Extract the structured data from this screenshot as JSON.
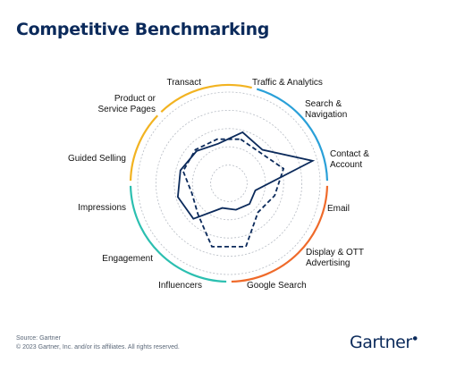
{
  "title": "Competitive Benchmarking",
  "footer": {
    "source": "Source: Gartner",
    "copyright": "© 2023 Gartner, Inc. and/or its affiliates. All rights reserved."
  },
  "logo_text": "Gartner",
  "chart_data": {
    "type": "radar",
    "title": "Competitive Benchmarking",
    "categories": [
      "Traffic & Analytics",
      "Search & Navigation",
      "Contact & Account",
      "Email",
      "Display & OTT Advertising",
      "Google Search",
      "Influencers",
      "Engagement",
      "Impressions",
      "Guided Selling",
      "Product or Service Pages",
      "Transact"
    ],
    "category_groups": [
      {
        "members": [
          "Transact",
          "Traffic & Analytics",
          "Product or Service Pages",
          "Guided Selling"
        ],
        "color": "#f2b321"
      },
      {
        "members": [
          "Traffic & Analytics",
          "Search & Navigation",
          "Contact & Account"
        ],
        "color": "#2aa0d8"
      },
      {
        "members": [
          "Email",
          "Display & OTT Advertising",
          "Google Search"
        ],
        "color": "#ef6a2a"
      },
      {
        "members": [
          "Influencers",
          "Engagement",
          "Impressions"
        ],
        "color": "#2bbfb0"
      }
    ],
    "rings": 5,
    "series": [
      {
        "style": "solid",
        "values": [
          0.58,
          0.52,
          0.95,
          0.3,
          0.32,
          0.3,
          0.28,
          0.55,
          0.58,
          0.55,
          0.5,
          0.45
        ]
      },
      {
        "style": "dashed",
        "values": [
          0.5,
          0.48,
          0.62,
          0.52,
          0.45,
          0.72,
          0.72,
          0.48,
          0.42,
          0.52,
          0.52,
          0.5
        ]
      }
    ],
    "colors": {
      "line": "#0b2a5b",
      "grid": "#b7bcc4"
    }
  }
}
